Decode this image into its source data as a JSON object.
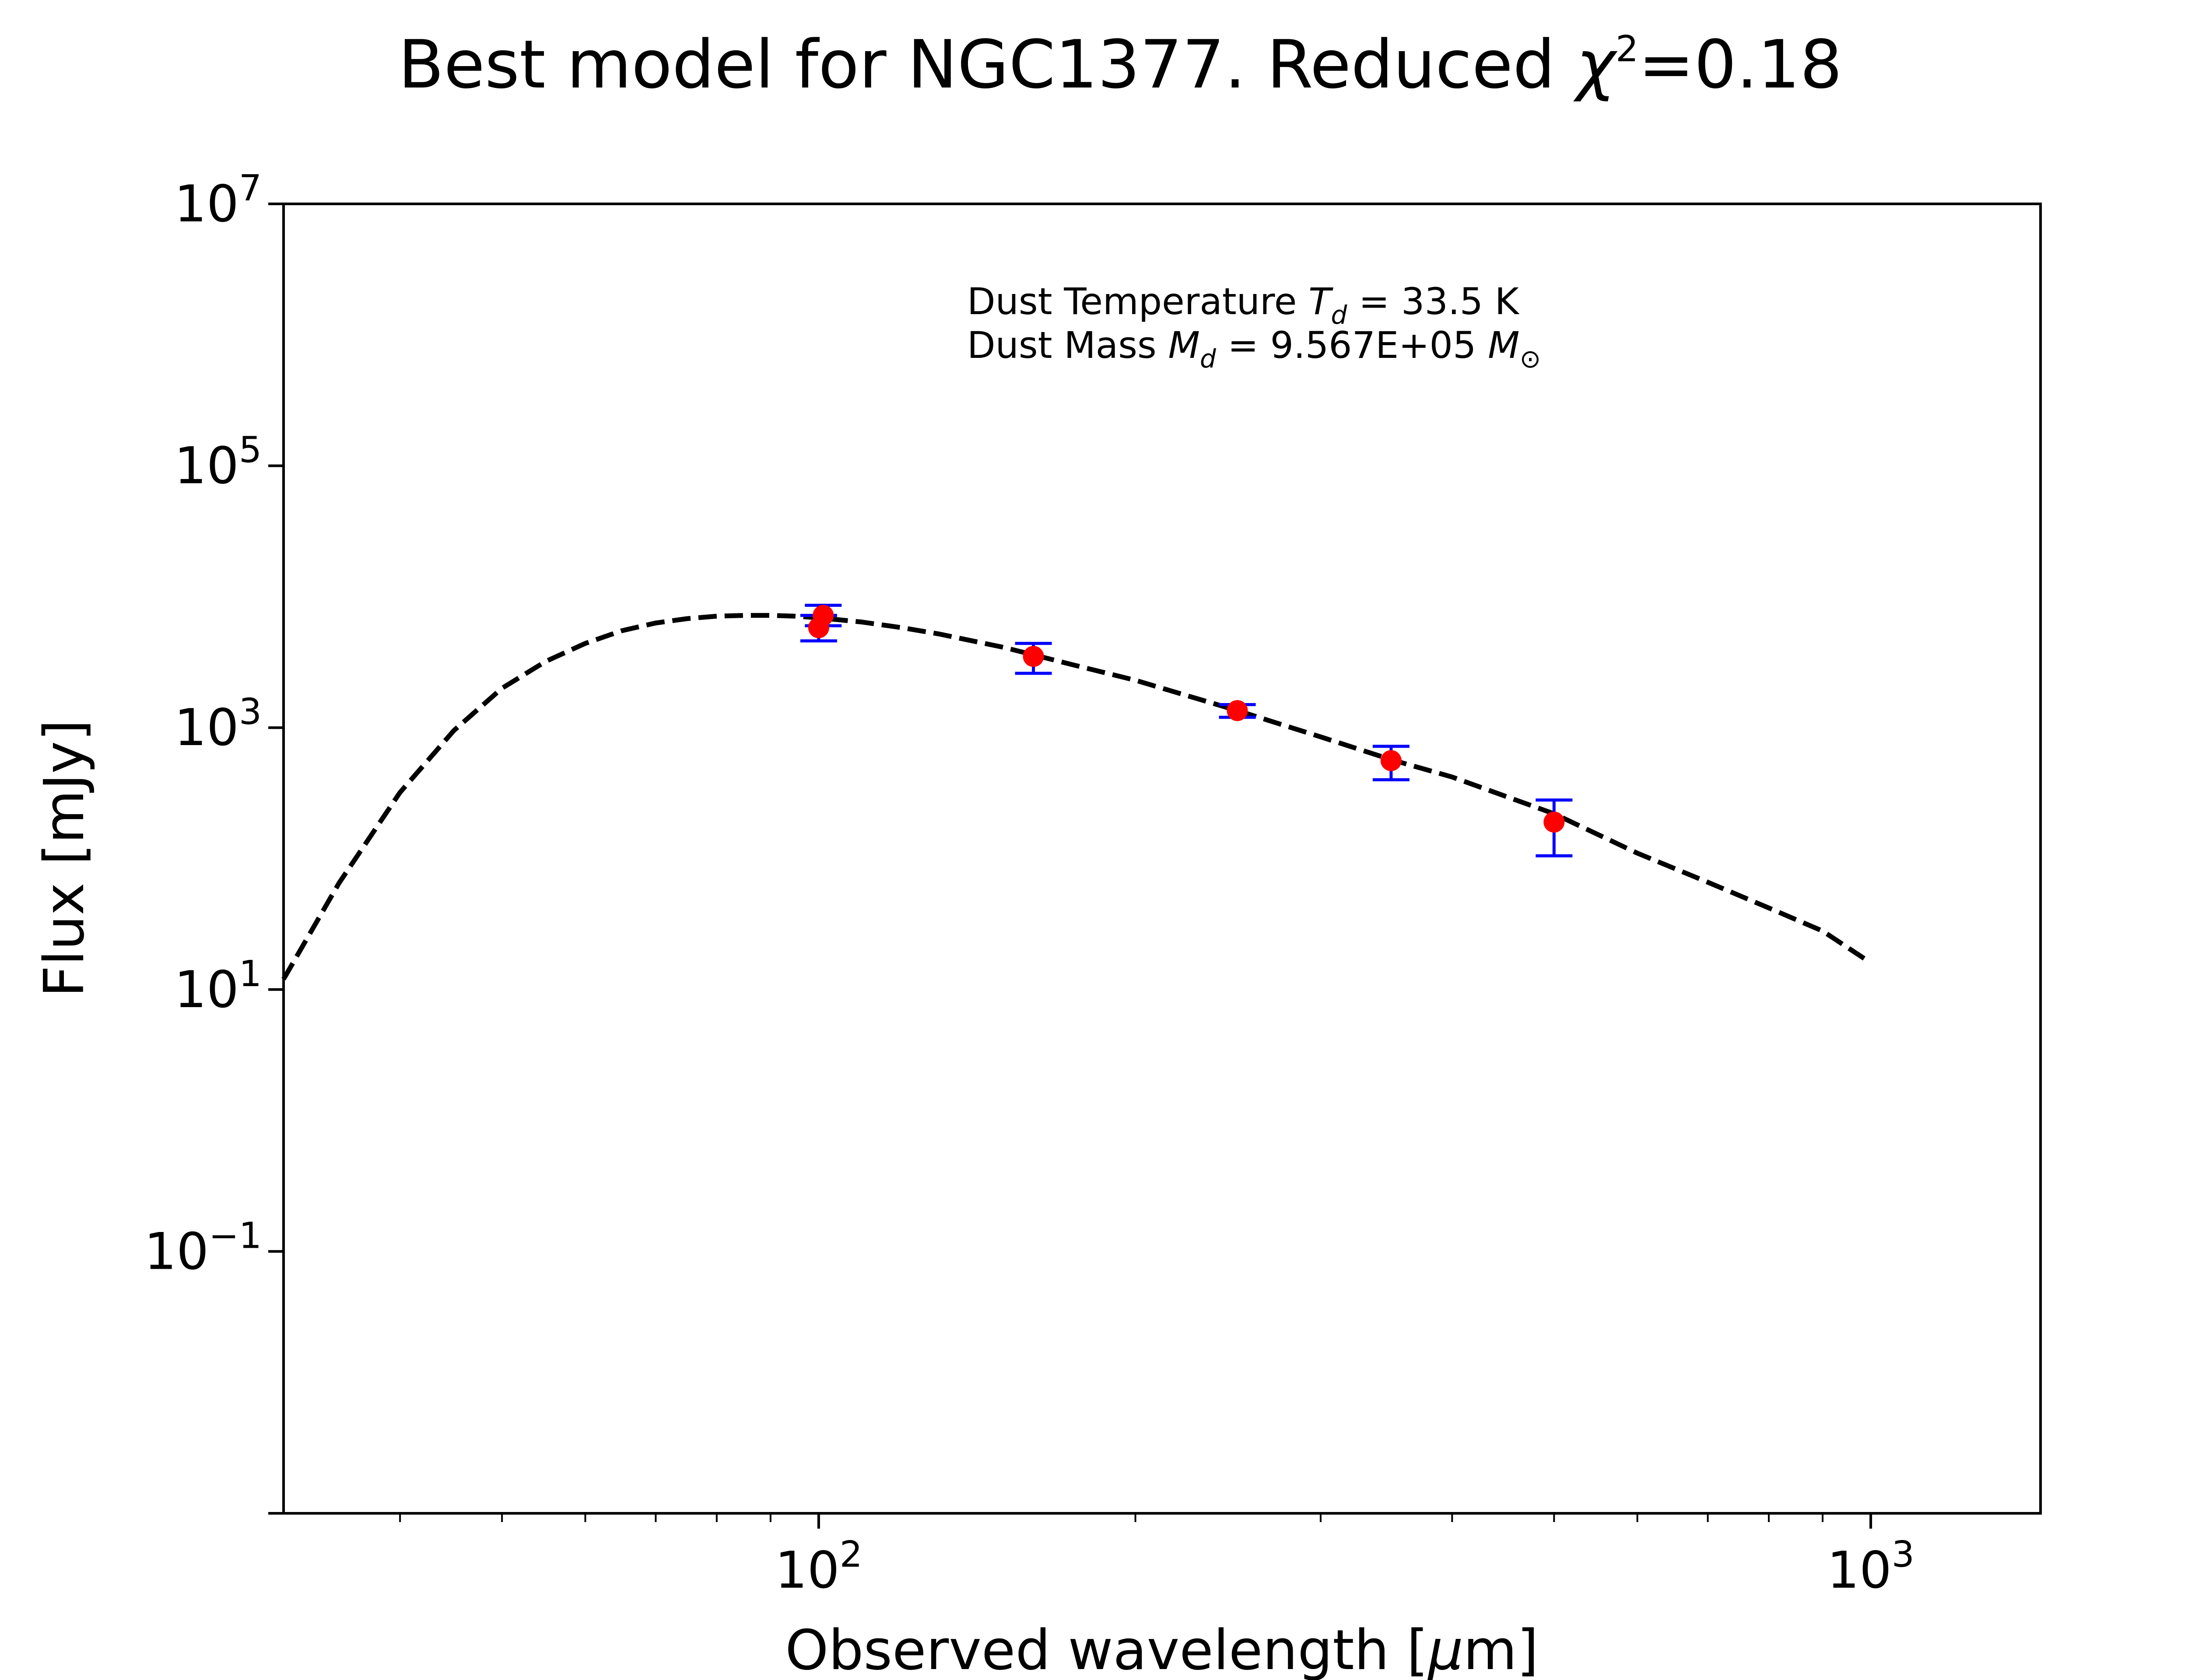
{
  "chart_data": {
    "type": "scatter",
    "title": {
      "prefix": "Best model for NGC1377. Reduced ",
      "symbol": "χ",
      "sup": "2",
      "suffix": "=0.18"
    },
    "xlabel": {
      "prefix": "Observed wavelength [",
      "symbol": "μ",
      "suffix": "m]"
    },
    "ylabel": "Flux [mJy]",
    "xscale": "log",
    "yscale": "log",
    "xlim": [
      31,
      1450
    ],
    "ylim": [
      0.001,
      10000000
    ],
    "xticks": [
      {
        "base": "10",
        "exp": "2",
        "value": 100
      },
      {
        "base": "10",
        "exp": "3",
        "value": 1000
      }
    ],
    "yticks": [
      {
        "base": "10",
        "exp": "7",
        "value": 10000000
      },
      {
        "base": "10",
        "exp": "5",
        "value": 100000
      },
      {
        "base": "10",
        "exp": "3",
        "value": 1000
      },
      {
        "base": "10",
        "exp": "1",
        "value": 10
      },
      {
        "base": "10",
        "exp": "−1",
        "value": 0.1
      }
    ],
    "grid": false,
    "annotations": [
      {
        "prefix": "Dust Temperature ",
        "sym": "T",
        "sub": "d",
        "suffix": " = 33.5 K"
      },
      {
        "prefix": "Dust Mass ",
        "sym": "M",
        "sub": "d",
        "suffix": " = 9.567E+05 ",
        "sym2": "M",
        "sub2": "⊙"
      }
    ],
    "observations": {
      "x": [
        100,
        101,
        160,
        250,
        350,
        500
      ],
      "y": [
        5800,
        7200,
        3500,
        1350,
        560,
        190
      ],
      "yerr_low": [
        1200,
        1200,
        900,
        150,
        160,
        85
      ],
      "yerr_high": [
        1400,
        1400,
        900,
        150,
        160,
        90
      ]
    },
    "model": {
      "type": "line",
      "style": "dashed",
      "x": [
        31,
        35,
        40,
        45,
        50,
        55,
        60,
        65,
        70,
        75,
        80,
        85,
        90,
        95,
        100,
        110,
        120,
        130,
        150,
        175,
        200,
        250,
        300,
        350,
        400,
        500,
        600,
        700,
        800,
        900,
        1000
      ],
      "y": [
        12,
        65,
        320,
        950,
        2000,
        3200,
        4400,
        5500,
        6300,
        6800,
        7100,
        7200,
        7200,
        7100,
        6900,
        6400,
        5800,
        5200,
        4100,
        3000,
        2300,
        1350,
        850,
        570,
        420,
        220,
        110,
        66,
        42,
        28,
        16
      ]
    },
    "colors": {
      "point": "#ff0000",
      "errorbar": "#0000ff",
      "model": "#000000",
      "axes": "#000000"
    }
  }
}
